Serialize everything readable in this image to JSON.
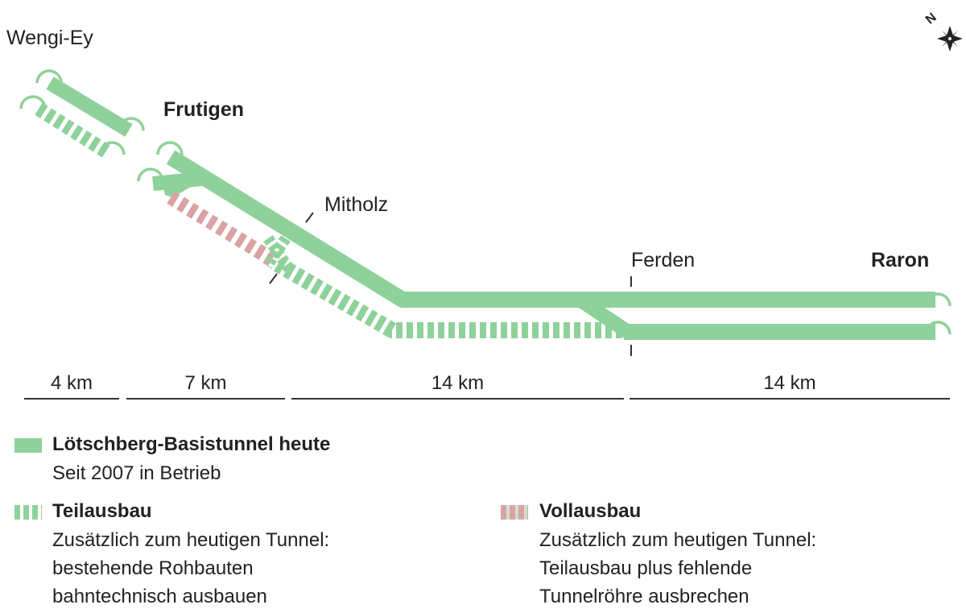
{
  "stations": {
    "wengi_ey": "Wengi-Ey",
    "frutigen": "Frutigen",
    "mitholz": "Mitholz",
    "ferden": "Ferden",
    "raron": "Raron"
  },
  "compass": {
    "letter": "N",
    "icon": "compass-rose-icon"
  },
  "distances": [
    "4 km",
    "7 km",
    "14 km",
    "14 km"
  ],
  "legend": {
    "today": {
      "title": "Lötschberg-Basistunnel heute",
      "lines": [
        "Seit 2007 in Betrieb"
      ],
      "color": "#8fd19a"
    },
    "partial": {
      "title": "Teilausbau",
      "lines": [
        "Zusätzlich zum heutigen Tunnel:",
        "bestehende Rohbauten",
        "bahntechnisch ausbauen"
      ],
      "color": "#8fd19a"
    },
    "full": {
      "title": "Vollausbau",
      "lines": [
        "Zusätzlich zum heutigen Tunnel:",
        "Teilausbau plus fehlende",
        "Tunnelröhre ausbrechen"
      ],
      "color": "#d9a3a3"
    }
  }
}
